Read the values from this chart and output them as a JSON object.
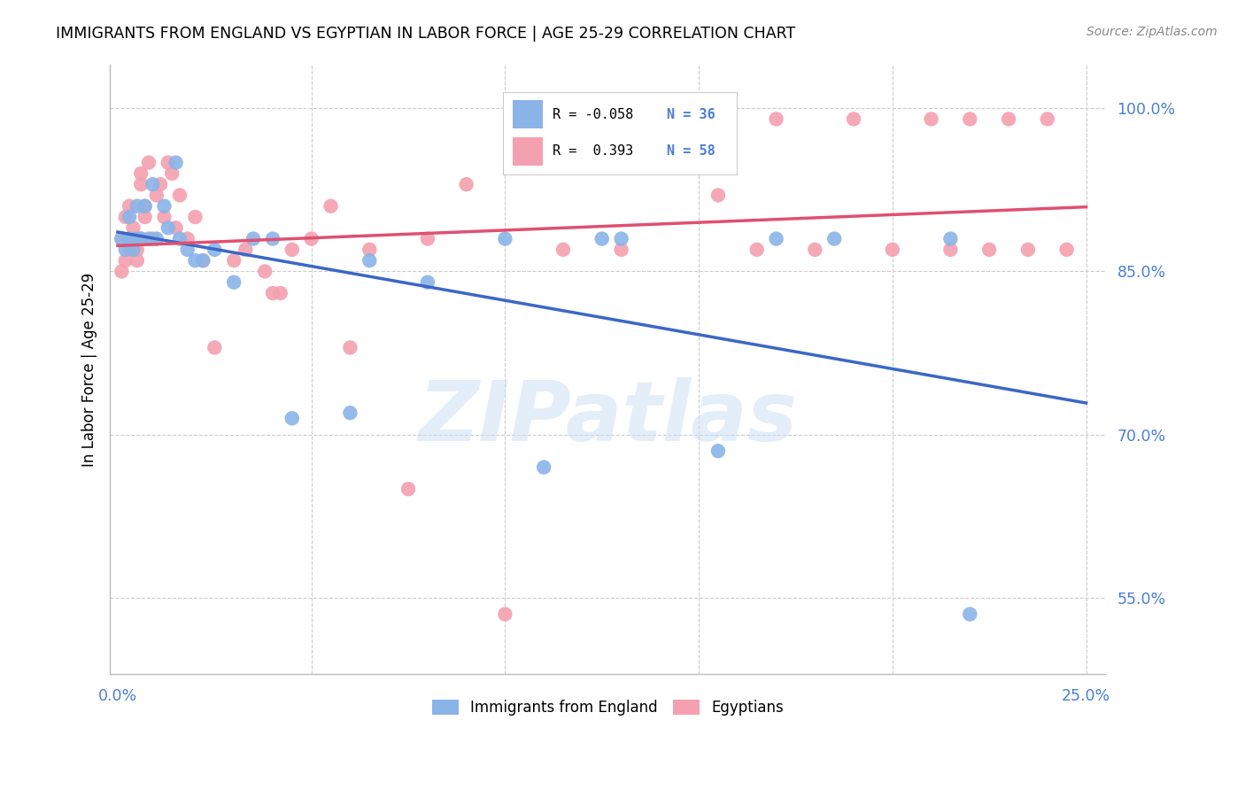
{
  "title": "IMMIGRANTS FROM ENGLAND VS EGYPTIAN IN LABOR FORCE | AGE 25-29 CORRELATION CHART",
  "source": "Source: ZipAtlas.com",
  "ylabel": "In Labor Force | Age 25-29",
  "y_ticks": [
    0.55,
    0.7,
    0.85,
    1.0
  ],
  "y_tick_labels": [
    "55.0%",
    "70.0%",
    "85.0%",
    "100.0%"
  ],
  "x_tick_labels_left": "0.0%",
  "x_tick_labels_right": "25.0%",
  "xlim": [
    -0.002,
    0.255
  ],
  "ylim": [
    0.48,
    1.04
  ],
  "legend_blue_r": "-0.058",
  "legend_blue_n": "36",
  "legend_pink_r": " 0.393",
  "legend_pink_n": "58",
  "blue_color": "#8ab4e8",
  "pink_color": "#f4a0b0",
  "blue_line_color": "#3a67c8",
  "pink_line_color": "#e05070",
  "watermark": "ZIPatlas",
  "england_x": [
    0.001,
    0.002,
    0.003,
    0.003,
    0.004,
    0.005,
    0.005,
    0.006,
    0.007,
    0.008,
    0.009,
    0.01,
    0.012,
    0.013,
    0.015,
    0.016,
    0.018,
    0.02,
    0.022,
    0.025,
    0.03,
    0.035,
    0.04,
    0.045,
    0.06,
    0.065,
    0.08,
    0.1,
    0.11,
    0.125,
    0.13,
    0.155,
    0.17,
    0.185,
    0.215,
    0.22
  ],
  "england_y": [
    0.88,
    0.87,
    0.88,
    0.9,
    0.87,
    0.88,
    0.91,
    0.88,
    0.91,
    0.88,
    0.93,
    0.88,
    0.91,
    0.89,
    0.95,
    0.88,
    0.87,
    0.86,
    0.86,
    0.87,
    0.84,
    0.88,
    0.88,
    0.715,
    0.72,
    0.86,
    0.84,
    0.88,
    0.67,
    0.88,
    0.88,
    0.685,
    0.88,
    0.88,
    0.88,
    0.535
  ],
  "egypt_x": [
    0.001,
    0.001,
    0.002,
    0.002,
    0.003,
    0.003,
    0.004,
    0.004,
    0.005,
    0.005,
    0.006,
    0.006,
    0.006,
    0.007,
    0.007,
    0.008,
    0.009,
    0.01,
    0.011,
    0.012,
    0.013,
    0.014,
    0.015,
    0.016,
    0.018,
    0.02,
    0.022,
    0.025,
    0.03,
    0.033,
    0.038,
    0.04,
    0.042,
    0.045,
    0.05,
    0.055,
    0.06,
    0.065,
    0.075,
    0.08,
    0.09,
    0.1,
    0.115,
    0.13,
    0.155,
    0.165,
    0.17,
    0.18,
    0.19,
    0.2,
    0.21,
    0.215,
    0.22,
    0.225,
    0.23,
    0.235,
    0.24,
    0.245
  ],
  "egypt_y": [
    0.88,
    0.85,
    0.86,
    0.9,
    0.87,
    0.91,
    0.88,
    0.89,
    0.87,
    0.86,
    0.93,
    0.88,
    0.94,
    0.91,
    0.9,
    0.95,
    0.88,
    0.92,
    0.93,
    0.9,
    0.95,
    0.94,
    0.89,
    0.92,
    0.88,
    0.9,
    0.86,
    0.78,
    0.86,
    0.87,
    0.85,
    0.83,
    0.83,
    0.87,
    0.88,
    0.91,
    0.78,
    0.87,
    0.65,
    0.88,
    0.93,
    0.535,
    0.87,
    0.87,
    0.92,
    0.87,
    0.99,
    0.87,
    0.99,
    0.87,
    0.99,
    0.87,
    0.99,
    0.87,
    0.99,
    0.87,
    0.99,
    0.87
  ]
}
